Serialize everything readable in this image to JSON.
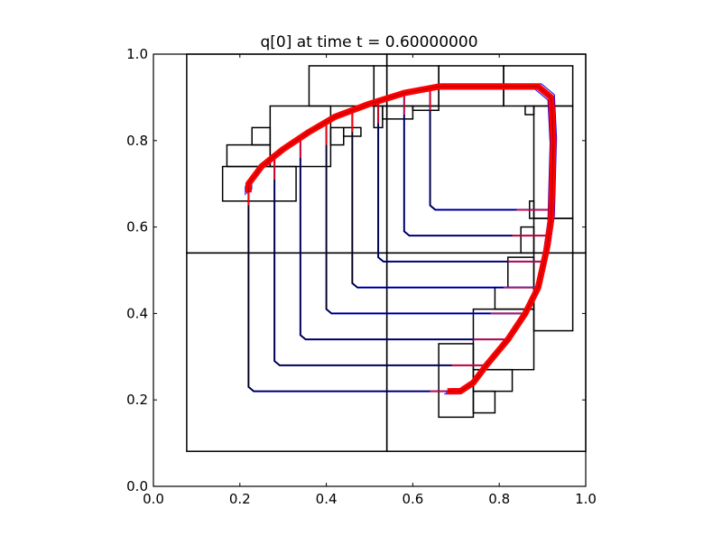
{
  "chart_data": {
    "type": "line",
    "title": "q[0] at time t =      0.60000000",
    "xlabel": "",
    "ylabel": "",
    "xlim": [
      0.0,
      1.0
    ],
    "ylim": [
      0.0,
      1.0
    ],
    "xticks": [
      "0.0",
      "0.2",
      "0.4",
      "0.6",
      "0.8",
      "1.0"
    ],
    "yticks": [
      "0.0",
      "0.2",
      "0.4",
      "0.6",
      "0.8",
      "1.0"
    ],
    "grid": false,
    "colors": {
      "patch": "#000000",
      "contour": "#0000ff",
      "front": "#ff0000"
    },
    "patches": [
      [
        0.077,
        0.081,
        0.54,
        0.54
      ],
      [
        0.54,
        0.081,
        1.0,
        0.54
      ],
      [
        0.077,
        0.54,
        0.54,
        1.0
      ],
      [
        0.54,
        0.54,
        1.0,
        1.0
      ],
      [
        0.36,
        0.88,
        0.51,
        0.973
      ],
      [
        0.51,
        0.88,
        0.66,
        0.973
      ],
      [
        0.66,
        0.88,
        0.81,
        0.973
      ],
      [
        0.81,
        0.88,
        0.97,
        0.973
      ],
      [
        0.27,
        0.74,
        0.41,
        0.88
      ],
      [
        0.16,
        0.66,
        0.33,
        0.74
      ],
      [
        0.17,
        0.74,
        0.27,
        0.79
      ],
      [
        0.228,
        0.79,
        0.27,
        0.83
      ],
      [
        0.41,
        0.79,
        0.44,
        0.83
      ],
      [
        0.44,
        0.81,
        0.48,
        0.83
      ],
      [
        0.51,
        0.83,
        0.53,
        0.88
      ],
      [
        0.53,
        0.85,
        0.6,
        0.88
      ],
      [
        0.6,
        0.87,
        0.66,
        0.88
      ],
      [
        0.86,
        0.86,
        0.88,
        0.88
      ],
      [
        0.88,
        0.62,
        0.97,
        0.88
      ],
      [
        0.87,
        0.62,
        0.88,
        0.66
      ],
      [
        0.85,
        0.54,
        0.88,
        0.6
      ],
      [
        0.88,
        0.36,
        0.97,
        0.62
      ],
      [
        0.82,
        0.46,
        0.88,
        0.53
      ],
      [
        0.79,
        0.41,
        0.88,
        0.46
      ],
      [
        0.74,
        0.27,
        0.88,
        0.41
      ],
      [
        0.66,
        0.16,
        0.74,
        0.33
      ],
      [
        0.74,
        0.22,
        0.83,
        0.27
      ],
      [
        0.74,
        0.17,
        0.79,
        0.22
      ]
    ],
    "contours": [
      {
        "level_x": 0.22,
        "top_y": 0.7,
        "level_y": 0.22,
        "right_x": 0.72
      },
      {
        "level_x": 0.28,
        "top_y": 0.76,
        "level_y": 0.28,
        "right_x": 0.77
      },
      {
        "level_x": 0.34,
        "top_y": 0.81,
        "level_y": 0.34,
        "right_x": 0.82
      },
      {
        "level_x": 0.4,
        "top_y": 0.84,
        "level_y": 0.4,
        "right_x": 0.86
      },
      {
        "level_x": 0.46,
        "top_y": 0.87,
        "level_y": 0.46,
        "right_x": 0.89
      },
      {
        "level_x": 0.52,
        "top_y": 0.89,
        "level_y": 0.52,
        "right_x": 0.9
      },
      {
        "level_x": 0.58,
        "top_y": 0.91,
        "level_y": 0.58,
        "right_x": 0.91
      },
      {
        "level_x": 0.64,
        "top_y": 0.92,
        "level_y": 0.64,
        "right_x": 0.92
      }
    ],
    "front": [
      [
        0.22,
        0.68
      ],
      [
        0.22,
        0.7
      ],
      [
        0.25,
        0.74
      ],
      [
        0.3,
        0.78
      ],
      [
        0.36,
        0.82
      ],
      [
        0.42,
        0.855
      ],
      [
        0.5,
        0.885
      ],
      [
        0.58,
        0.91
      ],
      [
        0.66,
        0.925
      ],
      [
        0.89,
        0.925
      ],
      [
        0.92,
        0.9
      ],
      [
        0.925,
        0.8
      ],
      [
        0.92,
        0.62
      ],
      [
        0.91,
        0.55
      ],
      [
        0.89,
        0.46
      ],
      [
        0.86,
        0.4
      ],
      [
        0.82,
        0.34
      ],
      [
        0.77,
        0.28
      ],
      [
        0.74,
        0.24
      ],
      [
        0.71,
        0.22
      ],
      [
        0.68,
        0.22
      ]
    ]
  }
}
